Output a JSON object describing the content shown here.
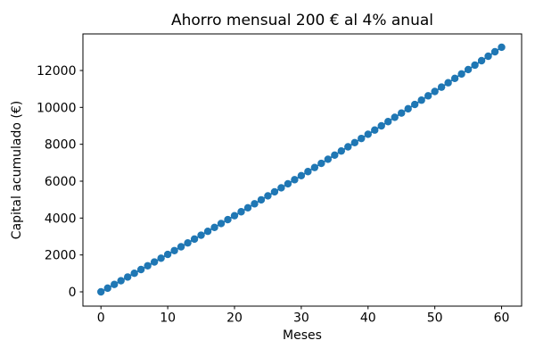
{
  "figure": {
    "background": "#ffffff"
  },
  "chart_data": {
    "type": "line",
    "title": "Ahorro mensual 200 € al 4% anual",
    "xlabel": "Meses",
    "ylabel": "Capital acumulado (€)",
    "grid": false,
    "legend": false,
    "xlim": [
      -2.7,
      63
    ],
    "ylim": [
      -774,
      13983
    ],
    "xticks": [
      0,
      10,
      20,
      30,
      40,
      50,
      60
    ],
    "yticks": [
      0,
      2000,
      4000,
      6000,
      8000,
      10000,
      12000
    ],
    "axis_color": "#000000",
    "series": [
      {
        "name": "Capital acumulado",
        "color": "#1f77b4",
        "marker": "o",
        "x": [
          0,
          1,
          2,
          3,
          4,
          5,
          6,
          7,
          8,
          9,
          10,
          11,
          12,
          13,
          14,
          15,
          16,
          17,
          18,
          19,
          20,
          21,
          22,
          23,
          24,
          25,
          26,
          27,
          28,
          29,
          30,
          31,
          32,
          33,
          34,
          35,
          36,
          37,
          38,
          39,
          40,
          41,
          42,
          43,
          44,
          45,
          46,
          47,
          48,
          49,
          50,
          51,
          52,
          53,
          54,
          55,
          56,
          57,
          58,
          59,
          60
        ],
        "y": [
          0,
          200,
          401,
          602,
          804,
          1007,
          1210,
          1414,
          1619,
          1824,
          2030,
          2237,
          2444,
          2653,
          2861,
          3071,
          3281,
          3492,
          3704,
          3916,
          4129,
          4343,
          4557,
          4773,
          4989,
          5205,
          5423,
          5641,
          5859,
          6079,
          6299,
          6520,
          6742,
          6964,
          7188,
          7412,
          7636,
          7862,
          8088,
          8315,
          8543,
          8771,
          9000,
          9230,
          9461,
          9693,
          9925,
          10158,
          10392,
          10627,
          10862,
          11098,
          11335,
          11573,
          11812,
          12051,
          12291,
          12532,
          12774,
          13016,
          13260
        ]
      }
    ]
  }
}
